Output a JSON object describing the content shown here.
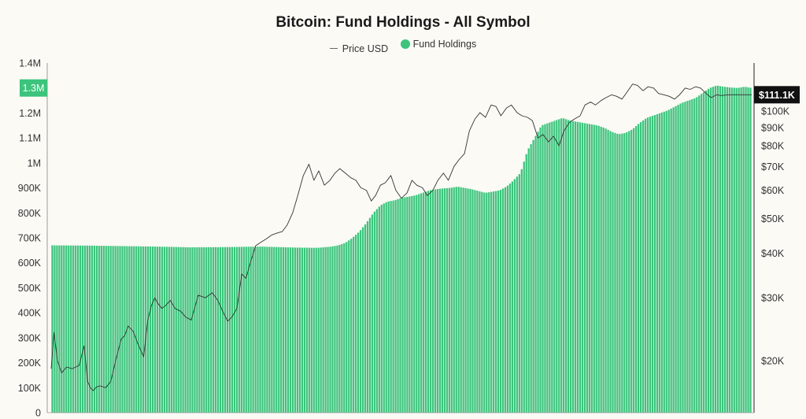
{
  "chart_data": {
    "type": "bar",
    "title": "Bitcoin: Fund Holdings - All Symbol",
    "legend_position": "top-center",
    "grid": false,
    "colors": {
      "fund_holdings": "#3cc47c",
      "price": "#333333"
    },
    "series": [
      {
        "name": "Price USD",
        "type": "line",
        "axis": "right",
        "x": [
          0.0,
          0.004,
          0.009,
          0.015,
          0.022,
          0.03,
          0.04,
          0.047,
          0.052,
          0.056,
          0.06,
          0.065,
          0.07,
          0.078,
          0.085,
          0.092,
          0.1,
          0.105,
          0.11,
          0.117,
          0.125,
          0.132,
          0.138,
          0.143,
          0.148,
          0.152,
          0.158,
          0.163,
          0.17,
          0.177,
          0.185,
          0.192,
          0.2,
          0.21,
          0.22,
          0.23,
          0.238,
          0.245,
          0.252,
          0.258,
          0.265,
          0.272,
          0.278,
          0.285,
          0.292,
          0.3,
          0.308,
          0.315,
          0.322,
          0.33,
          0.337,
          0.345,
          0.352,
          0.36,
          0.368,
          0.375,
          0.382,
          0.39,
          0.398,
          0.405,
          0.412,
          0.42,
          0.428,
          0.435,
          0.442,
          0.45,
          0.457,
          0.463,
          0.47,
          0.477,
          0.485,
          0.492,
          0.5,
          0.508,
          0.515,
          0.522,
          0.53,
          0.537,
          0.545,
          0.552,
          0.56,
          0.567,
          0.575,
          0.582,
          0.59,
          0.597,
          0.605,
          0.612,
          0.62,
          0.628,
          0.635,
          0.642,
          0.65,
          0.657,
          0.665,
          0.672,
          0.68,
          0.687,
          0.695,
          0.702,
          0.71,
          0.717,
          0.725,
          0.732,
          0.74,
          0.747,
          0.755,
          0.762,
          0.77,
          0.777,
          0.785,
          0.792,
          0.8,
          0.807,
          0.815,
          0.822,
          0.83,
          0.837,
          0.845,
          0.852,
          0.86,
          0.867,
          0.875,
          0.882,
          0.89,
          0.897,
          0.905,
          0.912,
          0.92,
          0.927,
          0.935,
          0.942,
          0.95,
          0.957,
          0.965,
          0.972,
          0.98,
          0.987,
          0.993,
          1.0
        ],
        "values": [
          19000,
          24000,
          20000,
          18500,
          19200,
          19000,
          19400,
          22000,
          17500,
          16800,
          16500,
          16900,
          17000,
          16800,
          17500,
          20000,
          23000,
          23500,
          25000,
          24200,
          22000,
          20500,
          26000,
          28500,
          30000,
          29000,
          28000,
          28500,
          29500,
          28000,
          27500,
          26500,
          26000,
          30500,
          30000,
          31000,
          29500,
          27500,
          25800,
          26500,
          28000,
          35000,
          34000,
          38000,
          42000,
          43000,
          44000,
          45000,
          45500,
          46000,
          48000,
          52000,
          58000,
          66000,
          71000,
          64000,
          68000,
          62000,
          64000,
          67000,
          69000,
          67000,
          65000,
          64000,
          61000,
          60000,
          56000,
          58000,
          62000,
          63000,
          66000,
          60000,
          57000,
          59000,
          64000,
          62000,
          61000,
          58000,
          60000,
          64000,
          67000,
          64000,
          70000,
          73000,
          76000,
          88000,
          95000,
          99000,
          96000,
          104000,
          103000,
          97000,
          102000,
          104000,
          99000,
          97000,
          96000,
          94000,
          84000,
          86000,
          82000,
          85000,
          80000,
          88000,
          93000,
          95000,
          97000,
          104000,
          106000,
          104000,
          107000,
          109000,
          111000,
          110000,
          108000,
          113000,
          119000,
          118000,
          114000,
          117000,
          116000,
          112000,
          111000,
          110000,
          108000,
          111000,
          116000,
          115000,
          117000,
          116000,
          112000,
          109000,
          111000,
          110500,
          111000,
          111100,
          111100,
          111100,
          111100,
          111100
        ]
      },
      {
        "name": "Fund Holdings",
        "type": "area",
        "axis": "left",
        "x": [
          0.0,
          0.05,
          0.1,
          0.15,
          0.2,
          0.25,
          0.3,
          0.35,
          0.38,
          0.4,
          0.41,
          0.42,
          0.43,
          0.44,
          0.45,
          0.46,
          0.47,
          0.48,
          0.49,
          0.5,
          0.51,
          0.52,
          0.53,
          0.54,
          0.55,
          0.56,
          0.57,
          0.58,
          0.59,
          0.6,
          0.62,
          0.64,
          0.65,
          0.66,
          0.67,
          0.68,
          0.69,
          0.7,
          0.71,
          0.72,
          0.73,
          0.74,
          0.75,
          0.76,
          0.77,
          0.78,
          0.79,
          0.8,
          0.81,
          0.82,
          0.83,
          0.84,
          0.85,
          0.86,
          0.87,
          0.88,
          0.89,
          0.9,
          0.91,
          0.92,
          0.93,
          0.94,
          0.95,
          0.96,
          0.97,
          0.98,
          0.99,
          1.0
        ],
        "values": [
          670000,
          669000,
          667000,
          665000,
          662000,
          663000,
          665000,
          661000,
          660000,
          665000,
          670000,
          680000,
          700000,
          725000,
          760000,
          800000,
          830000,
          845000,
          850000,
          860000,
          865000,
          870000,
          880000,
          890000,
          895000,
          898000,
          900000,
          905000,
          900000,
          895000,
          880000,
          890000,
          905000,
          930000,
          960000,
          1050000,
          1100000,
          1150000,
          1160000,
          1170000,
          1180000,
          1170000,
          1165000,
          1160000,
          1155000,
          1150000,
          1140000,
          1125000,
          1115000,
          1120000,
          1135000,
          1160000,
          1180000,
          1190000,
          1200000,
          1210000,
          1225000,
          1240000,
          1250000,
          1260000,
          1280000,
          1300000,
          1310000,
          1305000,
          1302000,
          1300000,
          1305000,
          1300000
        ]
      }
    ],
    "left_axis": {
      "min": 0,
      "max": 1400000,
      "ticks": [
        "0",
        "100K",
        "200K",
        "300K",
        "400K",
        "500K",
        "600K",
        "700K",
        "800K",
        "900K",
        "1M",
        "1.1M",
        "1.2M",
        "1.3M",
        "1.4M"
      ]
    },
    "right_axis": {
      "scale": "log",
      "ticks": [
        "$20K",
        "$30K",
        "$40K",
        "$50K",
        "$60K",
        "$70K",
        "$80K",
        "$90K",
        "$100K"
      ]
    },
    "current_value_labels": {
      "left": "1.3M",
      "right": "$111.1K"
    }
  }
}
